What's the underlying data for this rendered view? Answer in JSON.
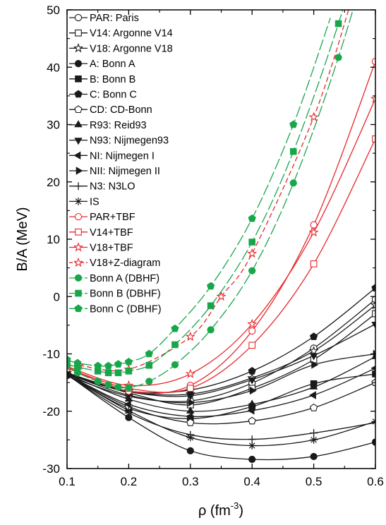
{
  "chart_data": {
    "type": "line",
    "xlabel": "ρ (fm",
    "xlabel_sup": "-3",
    "xlabel_end": ")",
    "ylabel": "B/A (MeV)",
    "xlim": [
      0.1,
      0.6
    ],
    "ylim": [
      -30,
      50
    ],
    "xticks": [
      0.1,
      0.2,
      0.3,
      0.4,
      0.5,
      0.6
    ],
    "xtick_labels": [
      "0.1",
      "0.2",
      "0.3",
      "0.4",
      "0.5",
      "0.6"
    ],
    "yticks": [
      -30,
      -20,
      -10,
      0,
      10,
      20,
      30,
      40,
      50
    ],
    "ytick_labels": [
      "-30",
      "-20",
      "-10",
      "0",
      "10",
      "20",
      "30",
      "40",
      "50"
    ],
    "grid": false,
    "legend_position": "top-left",
    "colors": {
      "black": "#1a1a1a",
      "red": "#e8262b",
      "green": "#19a64b"
    },
    "series": [
      {
        "name": "PAR: Paris",
        "color": "black",
        "marker": "circle-open",
        "dash": "solid",
        "x": [
          0.1,
          0.2,
          0.3,
          0.4,
          0.5,
          0.6
        ],
        "y": [
          -13.8,
          -17.4,
          -18.2,
          -15.1,
          -9.0,
          -0.5
        ]
      },
      {
        "name": "V14: Argonne V14",
        "color": "black",
        "marker": "square-open",
        "dash": "solid",
        "x": [
          0.1,
          0.2,
          0.3,
          0.4,
          0.5,
          0.6
        ],
        "y": [
          -13.5,
          -16.8,
          -18.9,
          -16.0,
          -11.0,
          -3.0
        ]
      },
      {
        "name": "V18: Argonne V18",
        "color": "black",
        "marker": "star-open",
        "dash": "solid",
        "x": [
          0.1,
          0.2,
          0.3,
          0.4,
          0.5,
          0.6
        ],
        "y": [
          -13.3,
          -16.5,
          -17.0,
          -14.2,
          -9.5,
          -1.5
        ]
      },
      {
        "name": "A: Bonn A",
        "color": "black",
        "marker": "circle-filled",
        "dash": "solid",
        "x": [
          0.1,
          0.2,
          0.3,
          0.4,
          0.5,
          0.6
        ],
        "y": [
          -13.6,
          -21.1,
          -26.9,
          -28.4,
          -27.9,
          -25.4
        ]
      },
      {
        "name": "B: Bonn B",
        "color": "black",
        "marker": "square-filled",
        "dash": "solid",
        "x": [
          0.1,
          0.2,
          0.3,
          0.4,
          0.5,
          0.6
        ],
        "y": [
          -13.6,
          -19.5,
          -21.3,
          -19.2,
          -15.2,
          -13.5
        ]
      },
      {
        "name": "C: Bonn C",
        "color": "black",
        "marker": "pentagon-filled",
        "dash": "solid",
        "x": [
          0.1,
          0.2,
          0.3,
          0.4,
          0.5,
          0.6
        ],
        "y": [
          -13.6,
          -16.5,
          -16.3,
          -13.0,
          -7.0,
          1.5
        ]
      },
      {
        "name": "CD: CD-Bonn",
        "color": "black",
        "marker": "pentagon-open",
        "dash": "solid",
        "x": [
          0.1,
          0.2,
          0.3,
          0.4,
          0.5,
          0.6
        ],
        "y": [
          -13.6,
          -19.2,
          -22.0,
          -21.7,
          -19.4,
          -15.0
        ]
      },
      {
        "name": "R93: Reid93",
        "color": "black",
        "marker": "triangle-up-filled",
        "dash": "solid",
        "x": [
          0.1,
          0.2,
          0.3,
          0.4,
          0.5,
          0.6
        ],
        "y": [
          -13.5,
          -17.9,
          -20.0,
          -18.8,
          -15.8,
          -10.5
        ]
      },
      {
        "name": "N93: Nijmegen93",
        "color": "black",
        "marker": "triangle-down-filled",
        "dash": "solid",
        "x": [
          0.1,
          0.2,
          0.3,
          0.4,
          0.5,
          0.6
        ],
        "y": [
          -13.5,
          -16.6,
          -17.3,
          -14.5,
          -10.3,
          -4.8
        ]
      },
      {
        "name": "NI: Nijmegen I",
        "color": "black",
        "marker": "triangle-left-filled",
        "dash": "solid",
        "x": [
          0.1,
          0.2,
          0.3,
          0.4,
          0.5,
          0.6
        ],
        "y": [
          -13.6,
          -18.8,
          -20.9,
          -19.9,
          -17.2,
          -12.5
        ]
      },
      {
        "name": "NII: Nijmegen II",
        "color": "black",
        "marker": "triangle-right-filled",
        "dash": "solid",
        "x": [
          0.1,
          0.2,
          0.3,
          0.4,
          0.5,
          0.6
        ],
        "y": [
          -13.4,
          -17.2,
          -18.5,
          -16.4,
          -11.9,
          -10.0
        ]
      },
      {
        "name": "N3: N3LO",
        "color": "black",
        "marker": "plus",
        "dash": "solid",
        "x": [
          0.1,
          0.2,
          0.3,
          0.4,
          0.5,
          0.6
        ],
        "y": [
          -13.7,
          -20.3,
          -24.1,
          -24.9,
          -23.8,
          -22.0
        ]
      },
      {
        "name": "IS",
        "color": "black",
        "marker": "asterisk",
        "dash": "solid",
        "x": [
          0.1,
          0.2,
          0.3,
          0.4,
          0.5,
          0.6
        ],
        "y": [
          -13.7,
          -19.9,
          -24.6,
          -26.0,
          -25.0,
          -21.8
        ]
      },
      {
        "name": "PAR+TBF",
        "color": "red",
        "marker": "circle-open",
        "dash": "solid",
        "x": [
          0.1,
          0.2,
          0.3,
          0.4,
          0.5,
          0.6
        ],
        "y": [
          -12.3,
          -16.5,
          -15.5,
          -6.0,
          12.5,
          41.0
        ]
      },
      {
        "name": "V14+TBF",
        "color": "red",
        "marker": "square-open",
        "dash": "solid",
        "x": [
          0.1,
          0.2,
          0.3,
          0.4,
          0.5,
          0.6
        ],
        "y": [
          -12.5,
          -16.0,
          -16.0,
          -8.5,
          5.7,
          27.5
        ]
      },
      {
        "name": "V18+TBF",
        "color": "red",
        "marker": "star-open",
        "dash": "solid",
        "x": [
          0.1,
          0.2,
          0.3,
          0.4,
          0.5,
          0.6
        ],
        "y": [
          -12.2,
          -15.5,
          -13.5,
          -4.8,
          11.2,
          34.5
        ]
      },
      {
        "name": "V18+Z-diagram",
        "color": "red",
        "marker": "star-open",
        "dash": "dashed",
        "x": [
          0.12,
          0.2,
          0.3,
          0.35,
          0.4,
          0.5
        ],
        "y": [
          -12.0,
          -12.7,
          -7.0,
          0.0,
          7.5,
          31.3
        ]
      },
      {
        "name": "Bonn A (DBHF)",
        "color": "green",
        "marker": "circle-filled",
        "dash": "long-dash",
        "x": [
          0.1,
          0.117,
          0.15,
          0.167,
          0.183,
          0.2,
          0.233,
          0.275,
          0.333,
          0.4,
          0.467,
          0.54
        ],
        "y": [
          -12.0,
          -13.3,
          -14.8,
          -15.4,
          -15.8,
          -15.9,
          -14.8,
          -11.9,
          -5.8,
          4.5,
          19.8,
          41.7
        ]
      },
      {
        "name": "Bonn B (DBHF)",
        "color": "green",
        "marker": "square-filled",
        "dash": "long-dash",
        "x": [
          0.1,
          0.117,
          0.15,
          0.167,
          0.183,
          0.2,
          0.233,
          0.275,
          0.333,
          0.4,
          0.467,
          0.54
        ],
        "y": [
          -11.8,
          -12.3,
          -13.0,
          -13.3,
          -13.3,
          -13.0,
          -12.0,
          -8.4,
          -1.6,
          9.5,
          25.3,
          47.6
        ]
      },
      {
        "name": "Bonn C (DBHF)",
        "color": "green",
        "marker": "pentagon-filled",
        "dash": "long-dash",
        "x": [
          0.1,
          0.117,
          0.15,
          0.167,
          0.183,
          0.2,
          0.233,
          0.275,
          0.333,
          0.4,
          0.467
        ],
        "y": [
          -11.0,
          -11.6,
          -12.1,
          -12.1,
          -11.8,
          -11.4,
          -10.0,
          -5.6,
          1.8,
          13.6,
          30.0
        ]
      }
    ]
  }
}
